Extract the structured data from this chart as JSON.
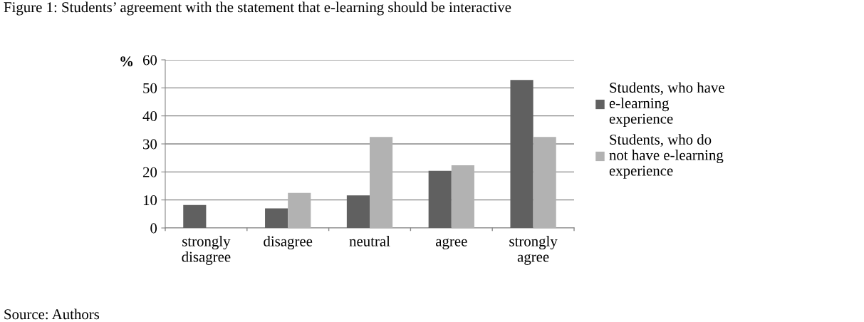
{
  "chart_data": {
    "type": "bar",
    "title": "Figure 1: Students’ agreement with the statement that e-learning should be interactive",
    "ylabel": "%",
    "categories": [
      "strongly\ndisagree",
      "disagree",
      "neutral",
      "agree",
      "strongly\nagree"
    ],
    "series": [
      {
        "name": "Students, who have\ne-learning\nexperience",
        "color": "#606060",
        "values": [
          8.2,
          7.0,
          11.6,
          20.4,
          52.8
        ]
      },
      {
        "name": "Students, who do\nnot have e-learning\nexperience",
        "color": "#b2b2b2",
        "values": [
          0,
          12.5,
          32.5,
          22.4,
          32.5
        ]
      }
    ],
    "ylim": [
      0,
      60
    ],
    "yticks": [
      0,
      10,
      20,
      30,
      40,
      50,
      60
    ],
    "grid": "y",
    "legend": "right",
    "annotations": [
      "Source: Authors"
    ]
  }
}
